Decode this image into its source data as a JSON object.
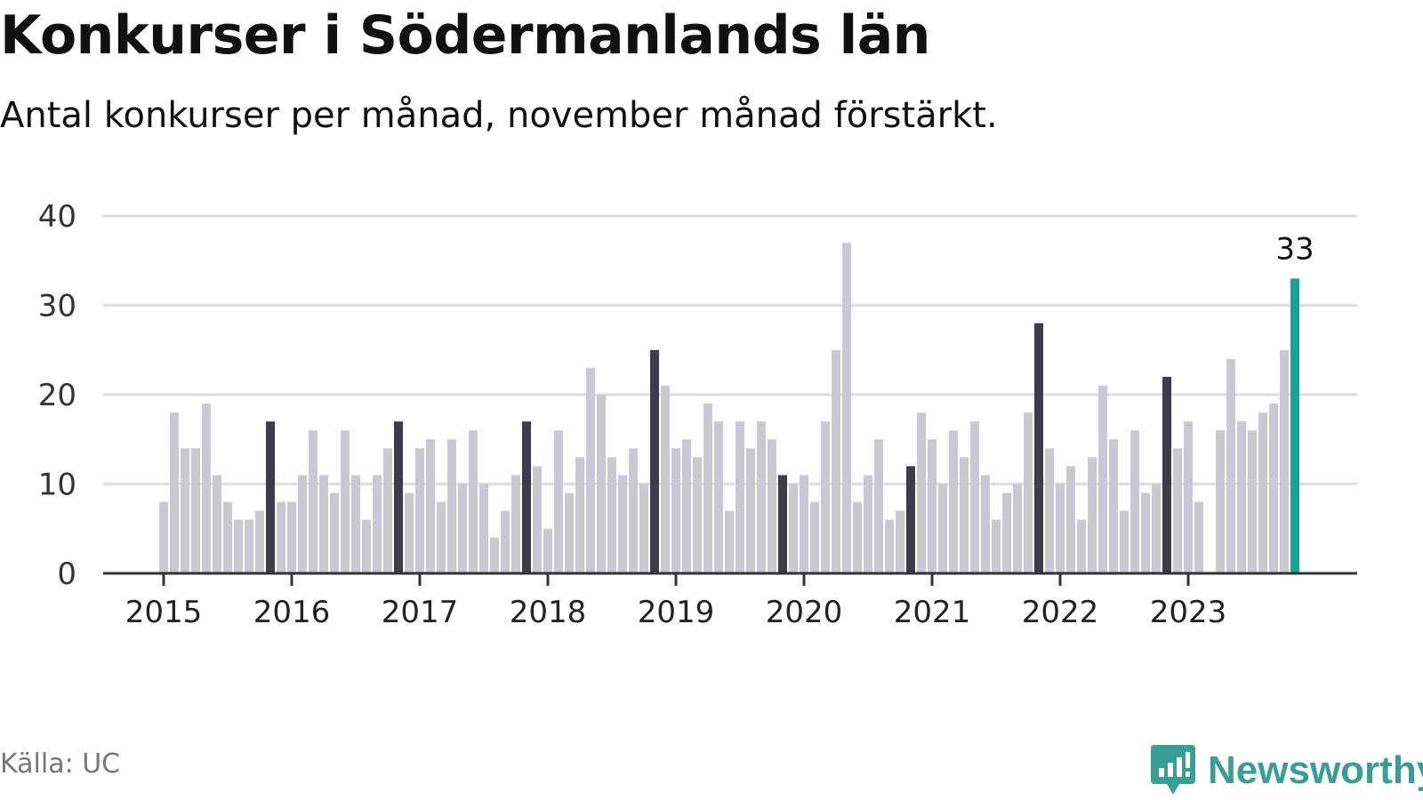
{
  "header": {
    "title": "Konkurser i Södermanlands län",
    "subtitle": "Antal konkurser per månad, november månad förstärkt."
  },
  "footer": {
    "source": "Källa: UC",
    "brand": "Newsworthy",
    "brand_icon": "newsworthy-logo-icon"
  },
  "colors": {
    "bar": "#c9c8d3",
    "highlight": "#3d3c4a",
    "latest": "#18a298",
    "grid": "#dddddd",
    "axis": "#333333",
    "brand": "#3a9e98"
  },
  "chart_data": {
    "type": "bar",
    "title": "Konkurser i Södermanlands län",
    "subtitle": "Antal konkurser per månad, november månad förstärkt.",
    "xlabel": "",
    "ylabel": "",
    "ylim": [
      0,
      40
    ],
    "yticks": [
      0,
      10,
      20,
      30,
      40
    ],
    "grid": true,
    "start": "2015-01",
    "xticks": [
      "2015",
      "2016",
      "2017",
      "2018",
      "2019",
      "2020",
      "2021",
      "2022",
      "2023"
    ],
    "highlight_month": "November",
    "values": [
      8,
      18,
      14,
      14,
      19,
      11,
      8,
      6,
      6,
      7,
      17,
      8,
      8,
      11,
      16,
      11,
      9,
      16,
      11,
      6,
      11,
      14,
      17,
      9,
      14,
      15,
      8,
      15,
      10,
      16,
      10,
      4,
      7,
      11,
      17,
      12,
      5,
      16,
      9,
      13,
      23,
      20,
      13,
      11,
      14,
      10,
      25,
      21,
      14,
      15,
      13,
      19,
      17,
      7,
      17,
      14,
      17,
      15,
      11,
      10,
      11,
      8,
      17,
      25,
      37,
      8,
      11,
      15,
      6,
      7,
      12,
      18,
      15,
      10,
      16,
      13,
      17,
      11,
      6,
      9,
      10,
      18,
      28,
      14,
      10,
      12,
      6,
      13,
      21,
      15,
      7,
      16,
      9,
      10,
      22,
      14,
      17,
      8,
      0,
      16,
      24,
      17,
      16,
      18,
      19,
      25,
      33
    ],
    "annotations": [
      {
        "label": "33",
        "value": 33,
        "month": "2023-11"
      }
    ]
  }
}
